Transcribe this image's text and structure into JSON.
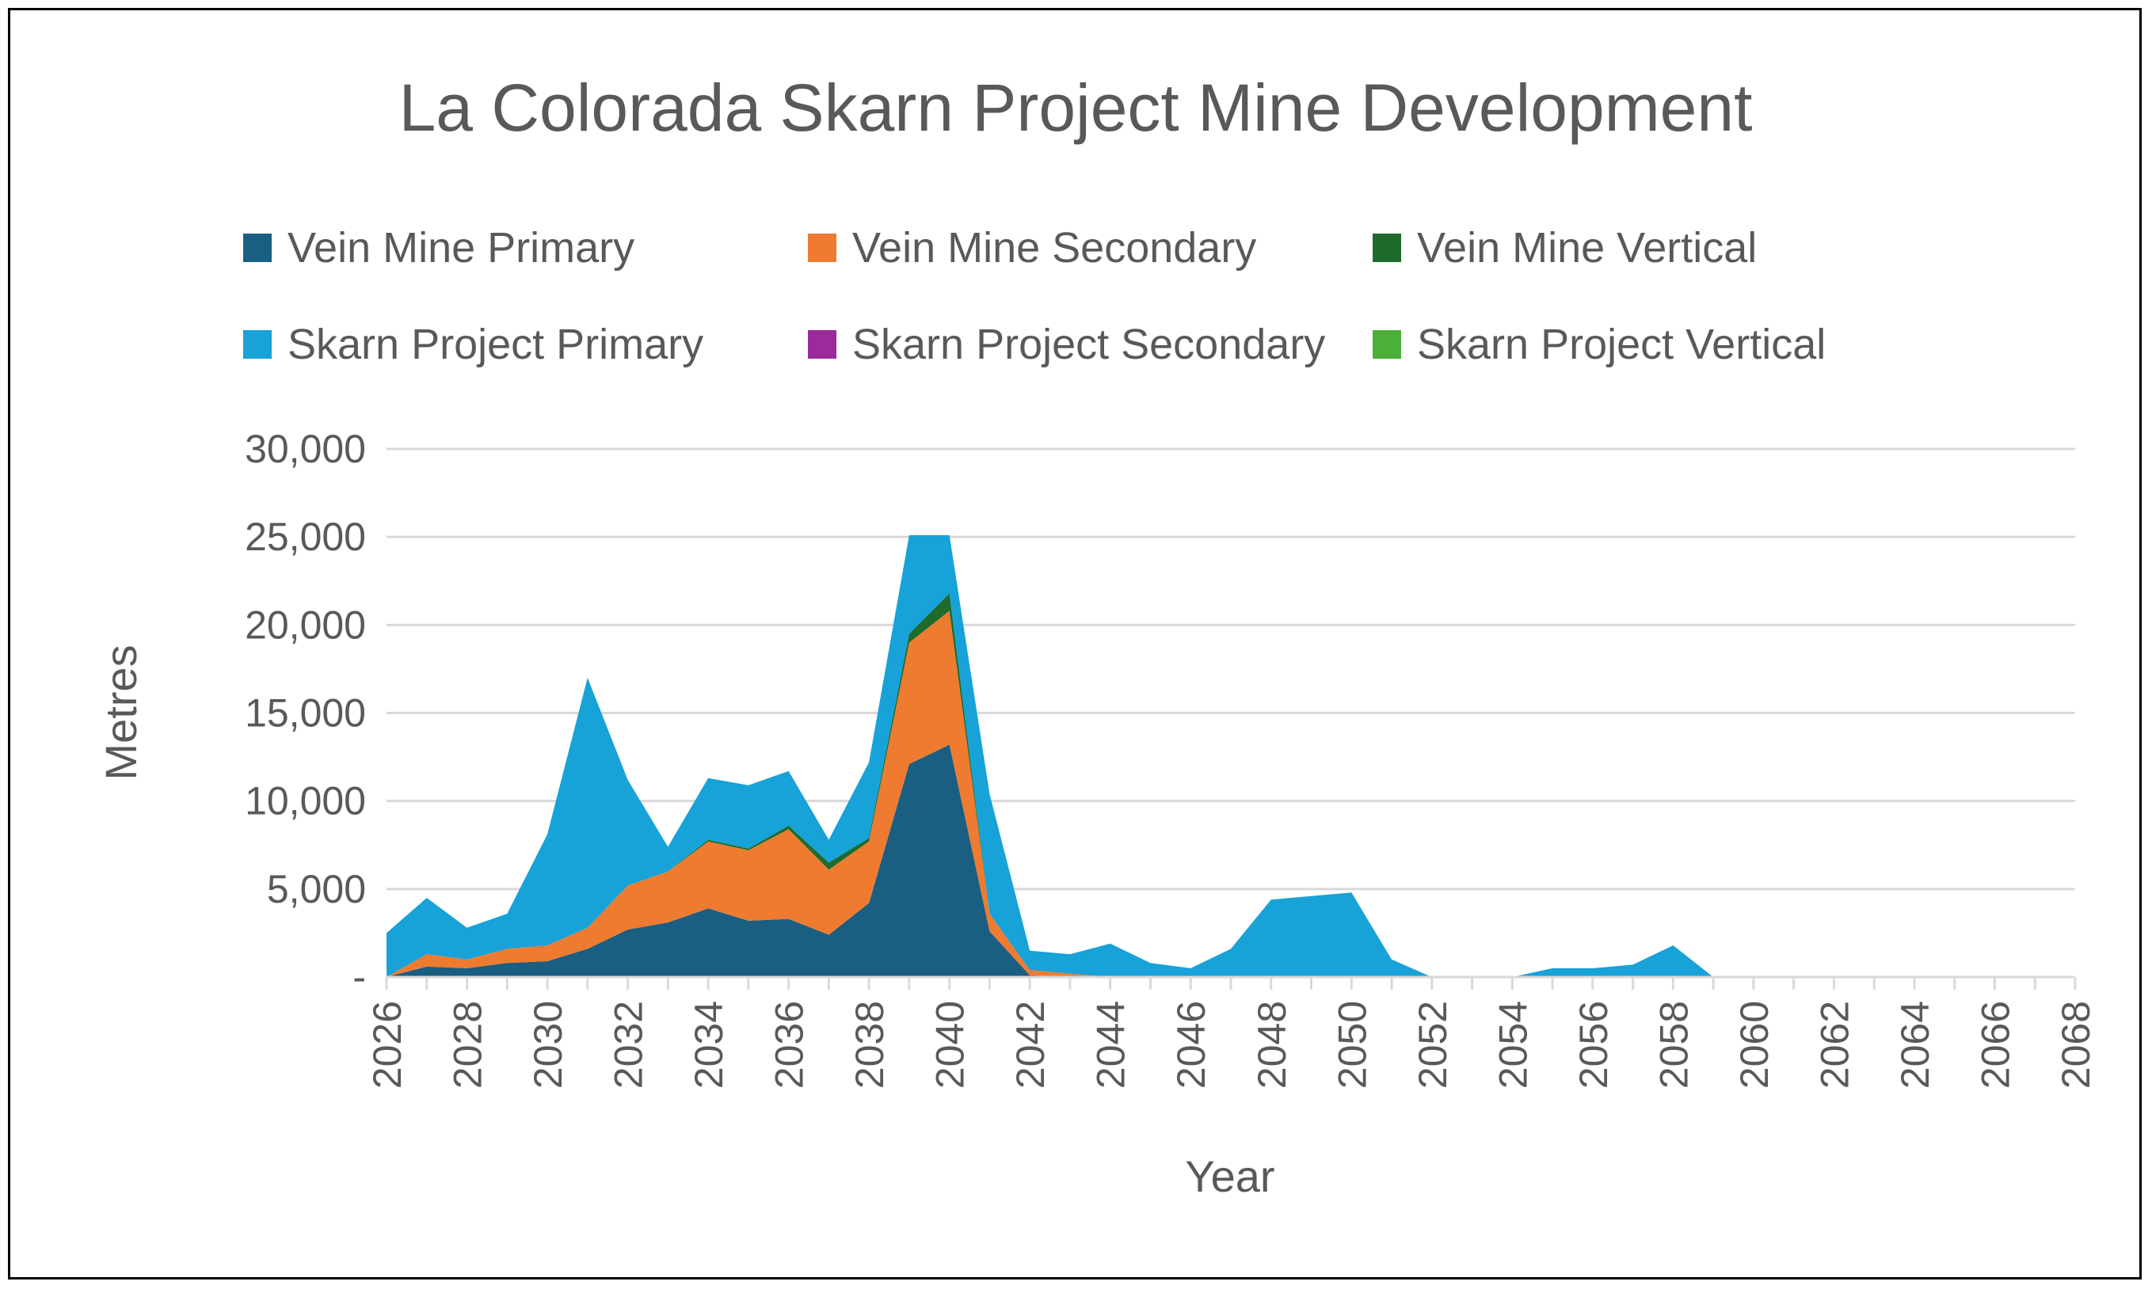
{
  "chart_data": {
    "type": "area",
    "stacked": true,
    "title": "La Colorada Skarn Project Mine Development",
    "xlabel": "Year",
    "ylabel": "Metres",
    "ylim": [
      0,
      30000
    ],
    "yticks": [
      0,
      5000,
      10000,
      15000,
      20000,
      25000,
      30000
    ],
    "ytick_labels": [
      "-",
      "5,000",
      "10,000",
      "15,000",
      "20,000",
      "25,000",
      "30,000"
    ],
    "xlim": [
      2026,
      2068
    ],
    "xticks": [
      "2026",
      "2028",
      "2030",
      "2032",
      "2034",
      "2036",
      "2038",
      "2040",
      "2042",
      "2044",
      "2046",
      "2048",
      "2050",
      "2052",
      "2054",
      "2056",
      "2058",
      "2060",
      "2062",
      "2064",
      "2066",
      "2068"
    ],
    "grid": true,
    "legend_position": "top",
    "x": [
      2026,
      2027,
      2028,
      2029,
      2030,
      2031,
      2032,
      2033,
      2034,
      2035,
      2036,
      2037,
      2038,
      2039,
      2040,
      2041,
      2042,
      2043,
      2044,
      2045,
      2046,
      2047,
      2048,
      2049,
      2050,
      2051,
      2052,
      2053,
      2054,
      2055,
      2056,
      2057,
      2058,
      2059,
      2060,
      2061,
      2062,
      2063,
      2064,
      2065,
      2066,
      2067,
      2068
    ],
    "series": [
      {
        "name": "Vein Mine Primary",
        "color": "#1a5e82",
        "values": [
          0,
          600,
          500,
          800,
          900,
          1600,
          2700,
          3100,
          3900,
          3200,
          3300,
          2400,
          4200,
          12100,
          13200,
          2600,
          100,
          0,
          0,
          0,
          0,
          0,
          0,
          0,
          0,
          0,
          0,
          0,
          0,
          0,
          0,
          0,
          0,
          0,
          0,
          0,
          0,
          0,
          0,
          0,
          0,
          0,
          0
        ]
      },
      {
        "name": "Vein Mine Secondary",
        "color": "#ee7b30",
        "values": [
          0,
          700,
          500,
          800,
          900,
          1200,
          2500,
          2900,
          3800,
          4000,
          5100,
          3700,
          3500,
          6900,
          7600,
          1000,
          300,
          200,
          0,
          0,
          0,
          0,
          0,
          0,
          0,
          0,
          0,
          0,
          0,
          0,
          0,
          0,
          0,
          0,
          0,
          0,
          0,
          0,
          0,
          0,
          0,
          0,
          0
        ]
      },
      {
        "name": "Vein Mine Vertical",
        "color": "#1e6b2c",
        "values": [
          0,
          0,
          0,
          0,
          0,
          0,
          0,
          0,
          100,
          100,
          200,
          400,
          200,
          500,
          1000,
          0,
          0,
          0,
          0,
          0,
          0,
          0,
          0,
          0,
          0,
          0,
          0,
          0,
          0,
          0,
          0,
          0,
          0,
          0,
          0,
          0,
          0,
          0,
          0,
          0,
          0,
          0,
          0
        ]
      },
      {
        "name": "Skarn Project Primary",
        "color": "#17a2d8",
        "values": [
          2500,
          3200,
          1800,
          2000,
          6300,
          14200,
          6000,
          1400,
          3500,
          3600,
          3100,
          1300,
          4300,
          5600,
          3300,
          6800,
          1100,
          1100,
          1900,
          800,
          500,
          1600,
          4400,
          4600,
          4800,
          1000,
          0,
          0,
          0,
          500,
          500,
          700,
          1800,
          0,
          0,
          0,
          0,
          0,
          0,
          0,
          0,
          0,
          0
        ]
      },
      {
        "name": "Skarn Project Secondary",
        "color": "#9b2a9b",
        "values": [
          0,
          0,
          0,
          0,
          0,
          0,
          0,
          0,
          0,
          0,
          0,
          0,
          0,
          0,
          0,
          0,
          0,
          0,
          0,
          0,
          0,
          0,
          0,
          0,
          0,
          0,
          0,
          0,
          0,
          0,
          0,
          0,
          0,
          0,
          0,
          0,
          0,
          0,
          0,
          0,
          0,
          0,
          0
        ]
      },
      {
        "name": "Skarn Project Vertical",
        "color": "#4caf39",
        "values": [
          0,
          0,
          0,
          0,
          0,
          0,
          0,
          0,
          0,
          0,
          0,
          0,
          0,
          0,
          0,
          0,
          0,
          0,
          0,
          0,
          0,
          0,
          0,
          0,
          0,
          0,
          0,
          0,
          0,
          0,
          0,
          0,
          0,
          0,
          0,
          0,
          0,
          0,
          0,
          0,
          0,
          0,
          0
        ]
      }
    ]
  }
}
